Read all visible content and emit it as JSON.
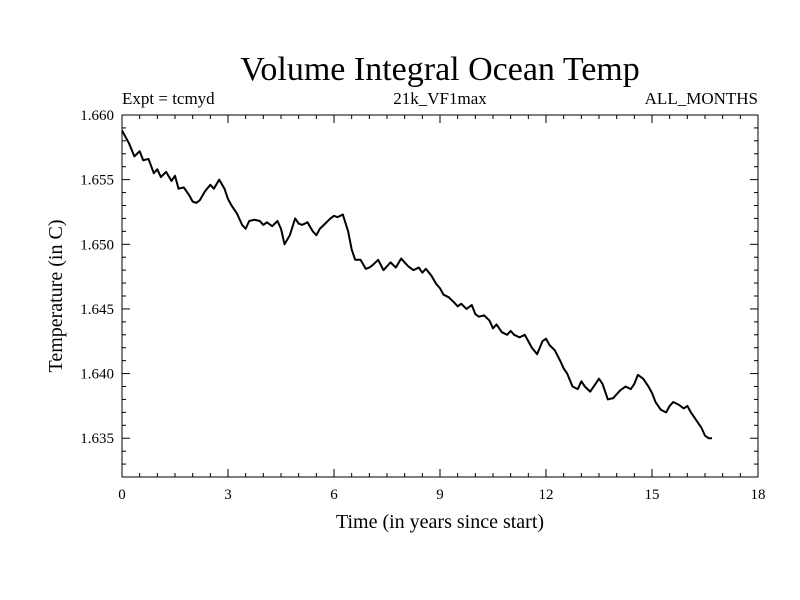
{
  "chart_data": {
    "type": "line",
    "title": "Volume Integral Ocean Temp",
    "subtitle_left": "Expt = tcmyd",
    "subtitle_center": "21k_VF1max",
    "subtitle_right": "ALL_MONTHS",
    "xlabel": "Time (in years since start)",
    "ylabel": "Temperature (in C)",
    "xlim": [
      0,
      18
    ],
    "ylim": [
      1.632,
      1.66
    ],
    "x_ticks": [
      0,
      3,
      6,
      9,
      12,
      15,
      18
    ],
    "x_tick_labels": [
      "0",
      "3",
      "6",
      "9",
      "12",
      "15",
      "18"
    ],
    "y_ticks": [
      1.635,
      1.64,
      1.645,
      1.65,
      1.655,
      1.66
    ],
    "y_tick_labels": [
      "1.635",
      "1.640",
      "1.645",
      "1.650",
      "1.655",
      "1.660"
    ],
    "grid": false,
    "series": [
      {
        "name": "tcmyd",
        "x": [
          0,
          0.2,
          0.35,
          0.5,
          0.6,
          0.75,
          0.9,
          1.0,
          1.1,
          1.25,
          1.4,
          1.5,
          1.6,
          1.75,
          1.9,
          2.0,
          2.1,
          2.2,
          2.35,
          2.5,
          2.6,
          2.75,
          2.9,
          3.0,
          3.1,
          3.25,
          3.4,
          3.5,
          3.6,
          3.75,
          3.9,
          4.0,
          4.1,
          4.25,
          4.4,
          4.5,
          4.6,
          4.75,
          4.9,
          5.0,
          5.1,
          5.25,
          5.4,
          5.5,
          5.6,
          5.75,
          5.9,
          6.0,
          6.1,
          6.25,
          6.4,
          6.5,
          6.6,
          6.75,
          6.9,
          7.0,
          7.1,
          7.25,
          7.4,
          7.5,
          7.6,
          7.75,
          7.9,
          8.0,
          8.1,
          8.25,
          8.4,
          8.5,
          8.6,
          8.75,
          8.9,
          9.0,
          9.1,
          9.25,
          9.4,
          9.5,
          9.6,
          9.75,
          9.9,
          10.0,
          10.1,
          10.25,
          10.4,
          10.5,
          10.6,
          10.75,
          10.9,
          11.0,
          11.1,
          11.25,
          11.4,
          11.5,
          11.6,
          11.75,
          11.9,
          12.0,
          12.1,
          12.25,
          12.4,
          12.5,
          12.6,
          12.75,
          12.9,
          13.0,
          13.1,
          13.25,
          13.4,
          13.5,
          13.6,
          13.75,
          13.9,
          14.0,
          14.1,
          14.25,
          14.4,
          14.5,
          14.6,
          14.75,
          14.9,
          15.0,
          15.1,
          15.25,
          15.4,
          15.5,
          15.6,
          15.75,
          15.9,
          16.0,
          16.1,
          16.25,
          16.4,
          16.5,
          16.6,
          16.7
        ],
        "values": [
          1.6588,
          1.6578,
          1.6568,
          1.6572,
          1.6565,
          1.6566,
          1.6555,
          1.6558,
          1.6552,
          1.6556,
          1.6549,
          1.6553,
          1.6543,
          1.6544,
          1.6538,
          1.6533,
          1.6532,
          1.6534,
          1.6541,
          1.6546,
          1.6543,
          1.655,
          1.6543,
          1.6535,
          1.653,
          1.6524,
          1.6515,
          1.6512,
          1.6518,
          1.6519,
          1.6518,
          1.6515,
          1.6517,
          1.6514,
          1.6518,
          1.6512,
          1.65,
          1.6507,
          1.652,
          1.6516,
          1.6515,
          1.6517,
          1.651,
          1.6507,
          1.6512,
          1.6516,
          1.652,
          1.6522,
          1.6521,
          1.6523,
          1.651,
          1.6496,
          1.6488,
          1.6488,
          1.6481,
          1.6482,
          1.6484,
          1.6488,
          1.648,
          1.6483,
          1.6486,
          1.6482,
          1.6489,
          1.6486,
          1.6483,
          1.648,
          1.6482,
          1.6478,
          1.6481,
          1.6476,
          1.6469,
          1.6466,
          1.6461,
          1.6459,
          1.6455,
          1.6452,
          1.6454,
          1.645,
          1.6453,
          1.6446,
          1.6444,
          1.6445,
          1.6441,
          1.6435,
          1.6438,
          1.6432,
          1.643,
          1.6433,
          1.643,
          1.6428,
          1.643,
          1.6425,
          1.642,
          1.6415,
          1.6425,
          1.6427,
          1.6422,
          1.6418,
          1.641,
          1.6404,
          1.64,
          1.639,
          1.6388,
          1.6394,
          1.639,
          1.6386,
          1.6392,
          1.6396,
          1.6392,
          1.638,
          1.6381,
          1.6384,
          1.6387,
          1.639,
          1.6388,
          1.6392,
          1.6399,
          1.6396,
          1.639,
          1.6385,
          1.6378,
          1.6372,
          1.637,
          1.6375,
          1.6378,
          1.6376,
          1.6373,
          1.6375,
          1.637,
          1.6364,
          1.6358,
          1.6352,
          1.635,
          1.635
        ]
      }
    ]
  }
}
